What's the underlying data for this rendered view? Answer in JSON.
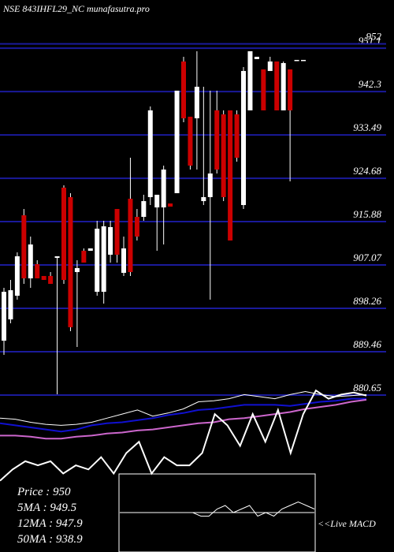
{
  "chart_data": {
    "type": "candlestick",
    "title": "NSE 843IHFL29_NC munafasutra.pro",
    "open": [
      891.7,
      896.03,
      900.83,
      917.17,
      904.36,
      907.24,
      904.84,
      904.84,
      908.52,
      922.78,
      920.86,
      905.64,
      909.96,
      909.96,
      901.63,
      901.63,
      909.16,
      918.45,
      905.48,
      920.53,
      916.85,
      916.85,
      920.86,
      918.77,
      918.77,
      919.57,
      921.66,
      948.41,
      937.19,
      936.87,
      920.05,
      920.86,
      938.48,
      937.67,
      938.48,
      937.67,
      919.25,
      938.48,
      948.89,
      946.8,
      946.48,
      948.41,
      938.48,
      946.8,
      948.73,
      948.73
    ],
    "high": [
      902.43,
      904.04,
      909.64,
      918.45,
      912.85,
      908.04,
      904.84,
      905.64,
      908.84,
      923.26,
      921.66,
      908.04,
      910.44,
      910.44,
      916.05,
      916.05,
      916.05,
      918.45,
      912.85,
      928.86,
      918.45,
      921.34,
      939.28,
      921.34,
      927.26,
      919.57,
      942.48,
      949.37,
      937.19,
      950.49,
      943.28,
      942.48,
      942.48,
      938.48,
      938.48,
      938.48,
      947.28,
      950.49,
      949.37,
      946.8,
      949.37,
      948.41,
      948.41,
      946.8,
      948.73,
      948.73
    ],
    "low": [
      888.82,
      895.23,
      900.03,
      903.24,
      902.43,
      904.36,
      904.04,
      903.24,
      880.81,
      903.24,
      893.62,
      890.42,
      907.56,
      909.96,
      900.83,
      899.23,
      907.56,
      907.56,
      904.84,
      904.84,
      912.05,
      916.05,
      919.25,
      909.96,
      911.24,
      918.93,
      921.66,
      936.07,
      926.46,
      926.46,
      919.25,
      900.03,
      925.66,
      920.05,
      912.05,
      928.06,
      918.45,
      938.48,
      948.89,
      938.48,
      946.48,
      938.48,
      938.48,
      924.06,
      948.73,
      948.73
    ],
    "close": [
      901.63,
      901.95,
      908.84,
      904.36,
      911.24,
      904.36,
      904.04,
      903.24,
      908.84,
      904.04,
      894.43,
      906.44,
      907.56,
      910.44,
      914.45,
      914.93,
      914.77,
      909.16,
      910.44,
      905.64,
      912.85,
      920.05,
      938.48,
      921.34,
      926.46,
      918.93,
      942.48,
      936.87,
      927.26,
      943.28,
      920.86,
      925.66,
      926.46,
      920.86,
      912.05,
      928.86,
      946.48,
      950.49,
      949.37,
      938.48,
      948.41,
      938.48,
      948.09,
      938.48,
      948.73,
      948.73
    ],
    "up_color": "#ffffff",
    "down_color": "#cc0000",
    "ylim": [
      880.65,
      960.9
    ],
    "yticks": [
      880.65,
      889.46,
      898.26,
      907.07,
      915.88,
      924.68,
      933.49,
      942.3,
      951.1,
      952
    ],
    "grid": true,
    "grid_color": "#1a1a9a",
    "indicators": {
      "ylim": [
        0,
        110
      ],
      "series": [
        {
          "color": "#ffffff",
          "values": [
            69,
            68,
            65,
            63,
            62,
            63,
            65,
            69,
            73,
            77,
            71,
            74,
            78,
            85,
            86,
            88,
            92,
            90,
            88,
            92,
            95,
            92,
            90,
            91,
            92
          ]
        },
        {
          "color": "#1010d0",
          "values": [
            64,
            62,
            60,
            58,
            56,
            58,
            62,
            64,
            65,
            67,
            69,
            72,
            74,
            77,
            78,
            80,
            82,
            82,
            82,
            81,
            83,
            85,
            86,
            88,
            88
          ]
        },
        {
          "color": "#cc66cc",
          "values": [
            52,
            52,
            51,
            49,
            49,
            51,
            52,
            54,
            55,
            57,
            58,
            60,
            62,
            64,
            65,
            68,
            69,
            71,
            73,
            75,
            78,
            80,
            82,
            85,
            87
          ]
        },
        {
          "color": "#ffffff",
          "values": [
            8,
            19,
            27,
            23,
            27,
            15,
            23,
            19,
            31,
            15,
            35,
            46,
            15,
            31,
            23,
            23,
            35,
            73,
            62,
            42,
            73,
            46,
            77,
            35,
            73,
            96,
            88,
            92,
            94,
            91
          ]
        }
      ]
    },
    "macd": {
      "ylim": [
        -1,
        1
      ],
      "series": [
        {
          "color": "#ffffff",
          "values": [
            0,
            0,
            0,
            0,
            0,
            0,
            0,
            0,
            0,
            0,
            -0.1,
            -0.1,
            0.1,
            0.2,
            0,
            0.1,
            0.2,
            -0.1,
            0,
            -0.1,
            0.1,
            0.2,
            0.3,
            0.2,
            0.1
          ]
        },
        {
          "color": "#ffffff",
          "values": [
            0,
            0
          ]
        }
      ],
      "label": "<<Live MACD"
    },
    "info": [
      "Price   :  950",
      "5MA : 949.5",
      "12MA : 947.9",
      "50MA : 938.9"
    ]
  }
}
